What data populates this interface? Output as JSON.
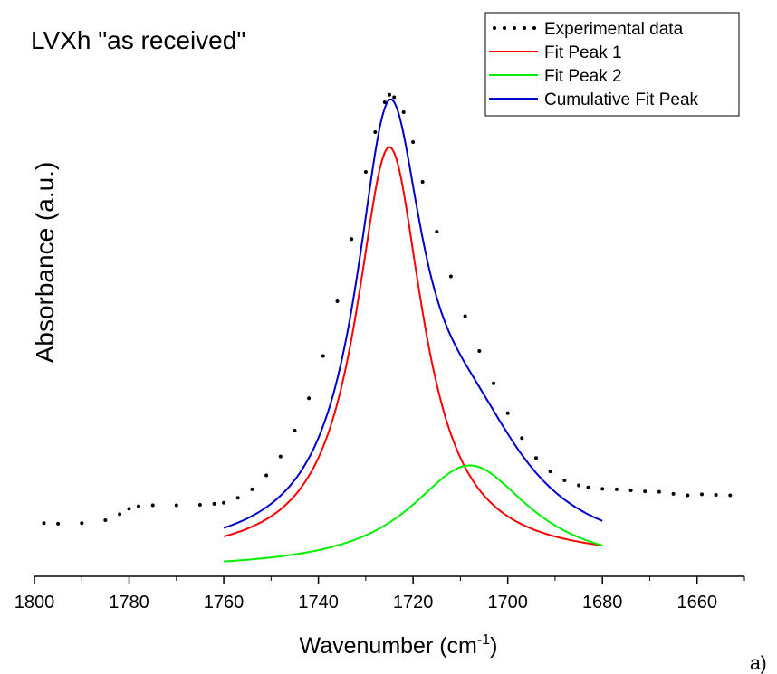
{
  "chart_data": {
    "type": "line",
    "title": "LVXh \"as received\"",
    "xlabel": "Wavenumber (cm",
    "xlabel_sup": "-1",
    "xlabel_close": ")",
    "ylabel": "Absorbance (a.u.)",
    "panel_label": "a)",
    "x_reversed": true,
    "xlim": [
      1800,
      1650
    ],
    "ylim": [
      0,
      1
    ],
    "x_ticks": [
      1800,
      1780,
      1760,
      1740,
      1720,
      1700,
      1680,
      1660
    ],
    "legend_position": "top-right",
    "grid": false,
    "series": [
      {
        "name": "Experimental data",
        "style": "dotted",
        "color": "#000000",
        "x": [
          1798,
          1795,
          1790,
          1785,
          1782,
          1780,
          1778,
          1775,
          1770,
          1765,
          1762,
          1760,
          1757,
          1754,
          1751,
          1748,
          1745,
          1742,
          1739,
          1736,
          1733,
          1730,
          1728,
          1726,
          1725,
          1724,
          1722,
          1720,
          1718,
          1715,
          1712,
          1709,
          1706,
          1703,
          1700,
          1697,
          1694,
          1691,
          1688,
          1685,
          1683,
          1680,
          1677,
          1674,
          1671,
          1668,
          1665,
          1662,
          1659,
          1656,
          1653
        ],
        "y": [
          0.094,
          0.093,
          0.094,
          0.1,
          0.112,
          0.123,
          0.128,
          0.13,
          0.13,
          0.131,
          0.133,
          0.135,
          0.145,
          0.162,
          0.19,
          0.228,
          0.28,
          0.345,
          0.43,
          0.54,
          0.665,
          0.8,
          0.88,
          0.94,
          0.955,
          0.95,
          0.92,
          0.86,
          0.78,
          0.68,
          0.59,
          0.51,
          0.44,
          0.375,
          0.315,
          0.265,
          0.225,
          0.198,
          0.18,
          0.17,
          0.166,
          0.163,
          0.162,
          0.16,
          0.158,
          0.157,
          0.153,
          0.15,
          0.152,
          0.151,
          0.15
        ]
      },
      {
        "name": "Fit Peak 1",
        "style": "solid",
        "color": "#ff0000",
        "center": 1725,
        "amplitude": 0.83,
        "hwhm": 8.6,
        "offset": 0.02,
        "x_range": [
          1760,
          1680
        ]
      },
      {
        "name": "Fit Peak 2",
        "style": "solid",
        "color": "#00ee00",
        "center": 1708,
        "amplitude": 0.21,
        "hwhm": 15.5,
        "offset": 0.0,
        "x_range": [
          1760,
          1680
        ]
      },
      {
        "name": "Cumulative Fit Peak",
        "style": "solid",
        "color": "#0000cc",
        "components": [
          "Fit Peak 1",
          "Fit Peak 2"
        ],
        "x_range": [
          1760,
          1680
        ]
      }
    ]
  }
}
